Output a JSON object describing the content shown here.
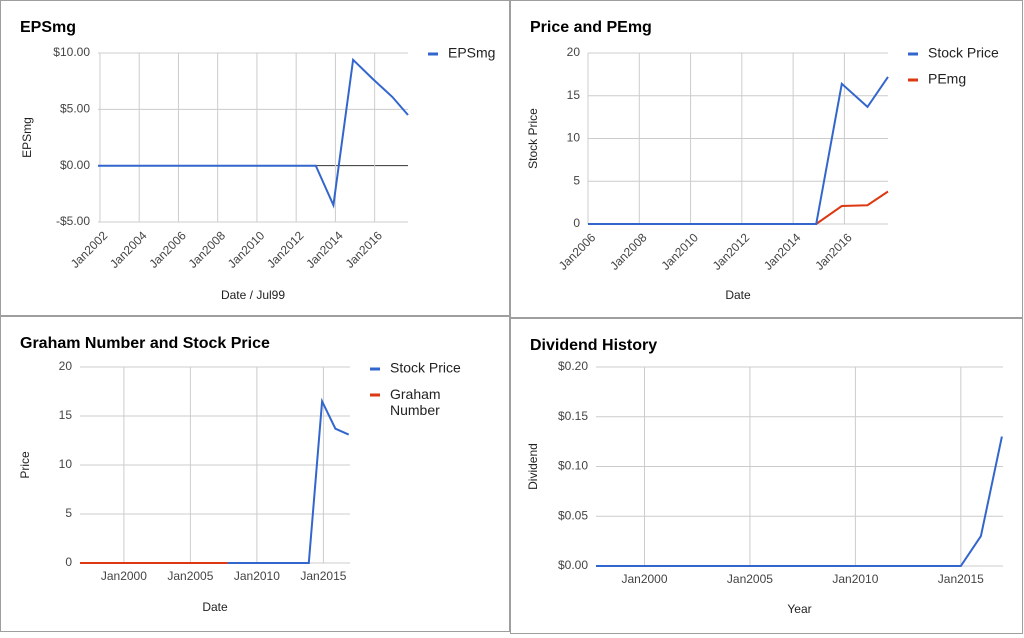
{
  "chart_data": [
    {
      "type": "line",
      "title": "EPSmg",
      "xlabel": "Date / Jul99",
      "ylabel": "EPSmg",
      "legend": "right",
      "xlim": [
        2001.9,
        2017.7
      ],
      "xticks": [
        {
          "value": 2002,
          "label": "Jan2002"
        },
        {
          "value": 2004,
          "label": "Jan2004"
        },
        {
          "value": 2006,
          "label": "Jan2006"
        },
        {
          "value": 2008,
          "label": "Jan2008"
        },
        {
          "value": 2010,
          "label": "Jan2010"
        },
        {
          "value": 2012,
          "label": "Jan2012"
        },
        {
          "value": 2014,
          "label": "Jan2014"
        },
        {
          "value": 2016,
          "label": "Jan2016"
        }
      ],
      "ylim": [
        -5,
        10
      ],
      "yticks": [
        {
          "value": 10,
          "label": "$10.00"
        },
        {
          "value": 5,
          "label": "$5.00"
        },
        {
          "value": 0,
          "label": "$0.00"
        },
        {
          "value": -5,
          "label": "-$5.00"
        }
      ],
      "series": [
        {
          "name": "EPSmg",
          "color": "#3366cc",
          "x": [
            2001.9,
            2013,
            2013.9,
            2014.9,
            2015.9,
            2016.9,
            2017.7
          ],
          "values": [
            0,
            0,
            -3.5,
            9.4,
            7.7,
            6.1,
            4.5
          ]
        }
      ]
    },
    {
      "type": "line",
      "title": "Price and PEmg",
      "xlabel": "Date",
      "ylabel": "Stock Price",
      "legend": "right",
      "xlim": [
        2006,
        2017.7
      ],
      "xticks": [
        {
          "value": 2006,
          "label": "Jan2006"
        },
        {
          "value": 2008,
          "label": "Jan2008"
        },
        {
          "value": 2010,
          "label": "Jan2010"
        },
        {
          "value": 2012,
          "label": "Jan2012"
        },
        {
          "value": 2014,
          "label": "Jan2014"
        },
        {
          "value": 2016,
          "label": "Jan2016"
        }
      ],
      "ylim": [
        0,
        20
      ],
      "yticks": [
        0,
        5,
        10,
        15,
        20
      ],
      "series": [
        {
          "name": "Stock Price",
          "color": "#3366cc",
          "x": [
            2006,
            2014.9,
            2015.9,
            2016.9,
            2017.7
          ],
          "values": [
            0,
            0,
            16.4,
            13.7,
            17.2
          ]
        },
        {
          "name": "PEmg",
          "color": "#dc3912",
          "x": [
            2006,
            2014.9,
            2015.9,
            2016.9,
            2017.7
          ],
          "values": [
            0,
            0,
            2.1,
            2.2,
            3.8
          ]
        }
      ]
    },
    {
      "type": "line",
      "title": "Graham Number and Stock Price",
      "xlabel": "Date",
      "ylabel": "Price",
      "legend": "right",
      "xlim": [
        1996.7,
        2017
      ],
      "xticks": [
        {
          "value": 2000,
          "label": "Jan2000"
        },
        {
          "value": 2005,
          "label": "Jan2005"
        },
        {
          "value": 2010,
          "label": "Jan2010"
        },
        {
          "value": 2015,
          "label": "Jan2015"
        }
      ],
      "ylim": [
        0,
        20
      ],
      "yticks": [
        0,
        5,
        10,
        15,
        20
      ],
      "series": [
        {
          "name": "Stock Price",
          "color": "#3366cc",
          "x": [
            2007.8,
            2013.9,
            2014.9,
            2015.9,
            2016.9
          ],
          "values": [
            0,
            0,
            16.5,
            13.7,
            13.1
          ]
        },
        {
          "name": "Graham Number",
          "color": "#dc3912",
          "x": [
            1996.7,
            2007.8
          ],
          "values": [
            0,
            0
          ]
        }
      ]
    },
    {
      "type": "line",
      "title": "Dividend History",
      "xlabel": "Year",
      "ylabel": "Dividend",
      "xlim": [
        1997.7,
        2017
      ],
      "xticks": [
        {
          "value": 2000,
          "label": "Jan2000"
        },
        {
          "value": 2005,
          "label": "Jan2005"
        },
        {
          "value": 2010,
          "label": "Jan2010"
        },
        {
          "value": 2015,
          "label": "Jan2015"
        }
      ],
      "ylim": [
        0,
        0.2
      ],
      "yticks": [
        {
          "value": 0.2,
          "label": "$0.20"
        },
        {
          "value": 0.15,
          "label": "$0.15"
        },
        {
          "value": 0.1,
          "label": "$0.10"
        },
        {
          "value": 0.05,
          "label": "$0.05"
        },
        {
          "value": 0,
          "label": "$0.00"
        }
      ],
      "color": "#3366cc",
      "x": [
        1997.7,
        2015,
        2015.95,
        2016.95
      ],
      "values": [
        0,
        0,
        0.03,
        0.13
      ]
    }
  ]
}
